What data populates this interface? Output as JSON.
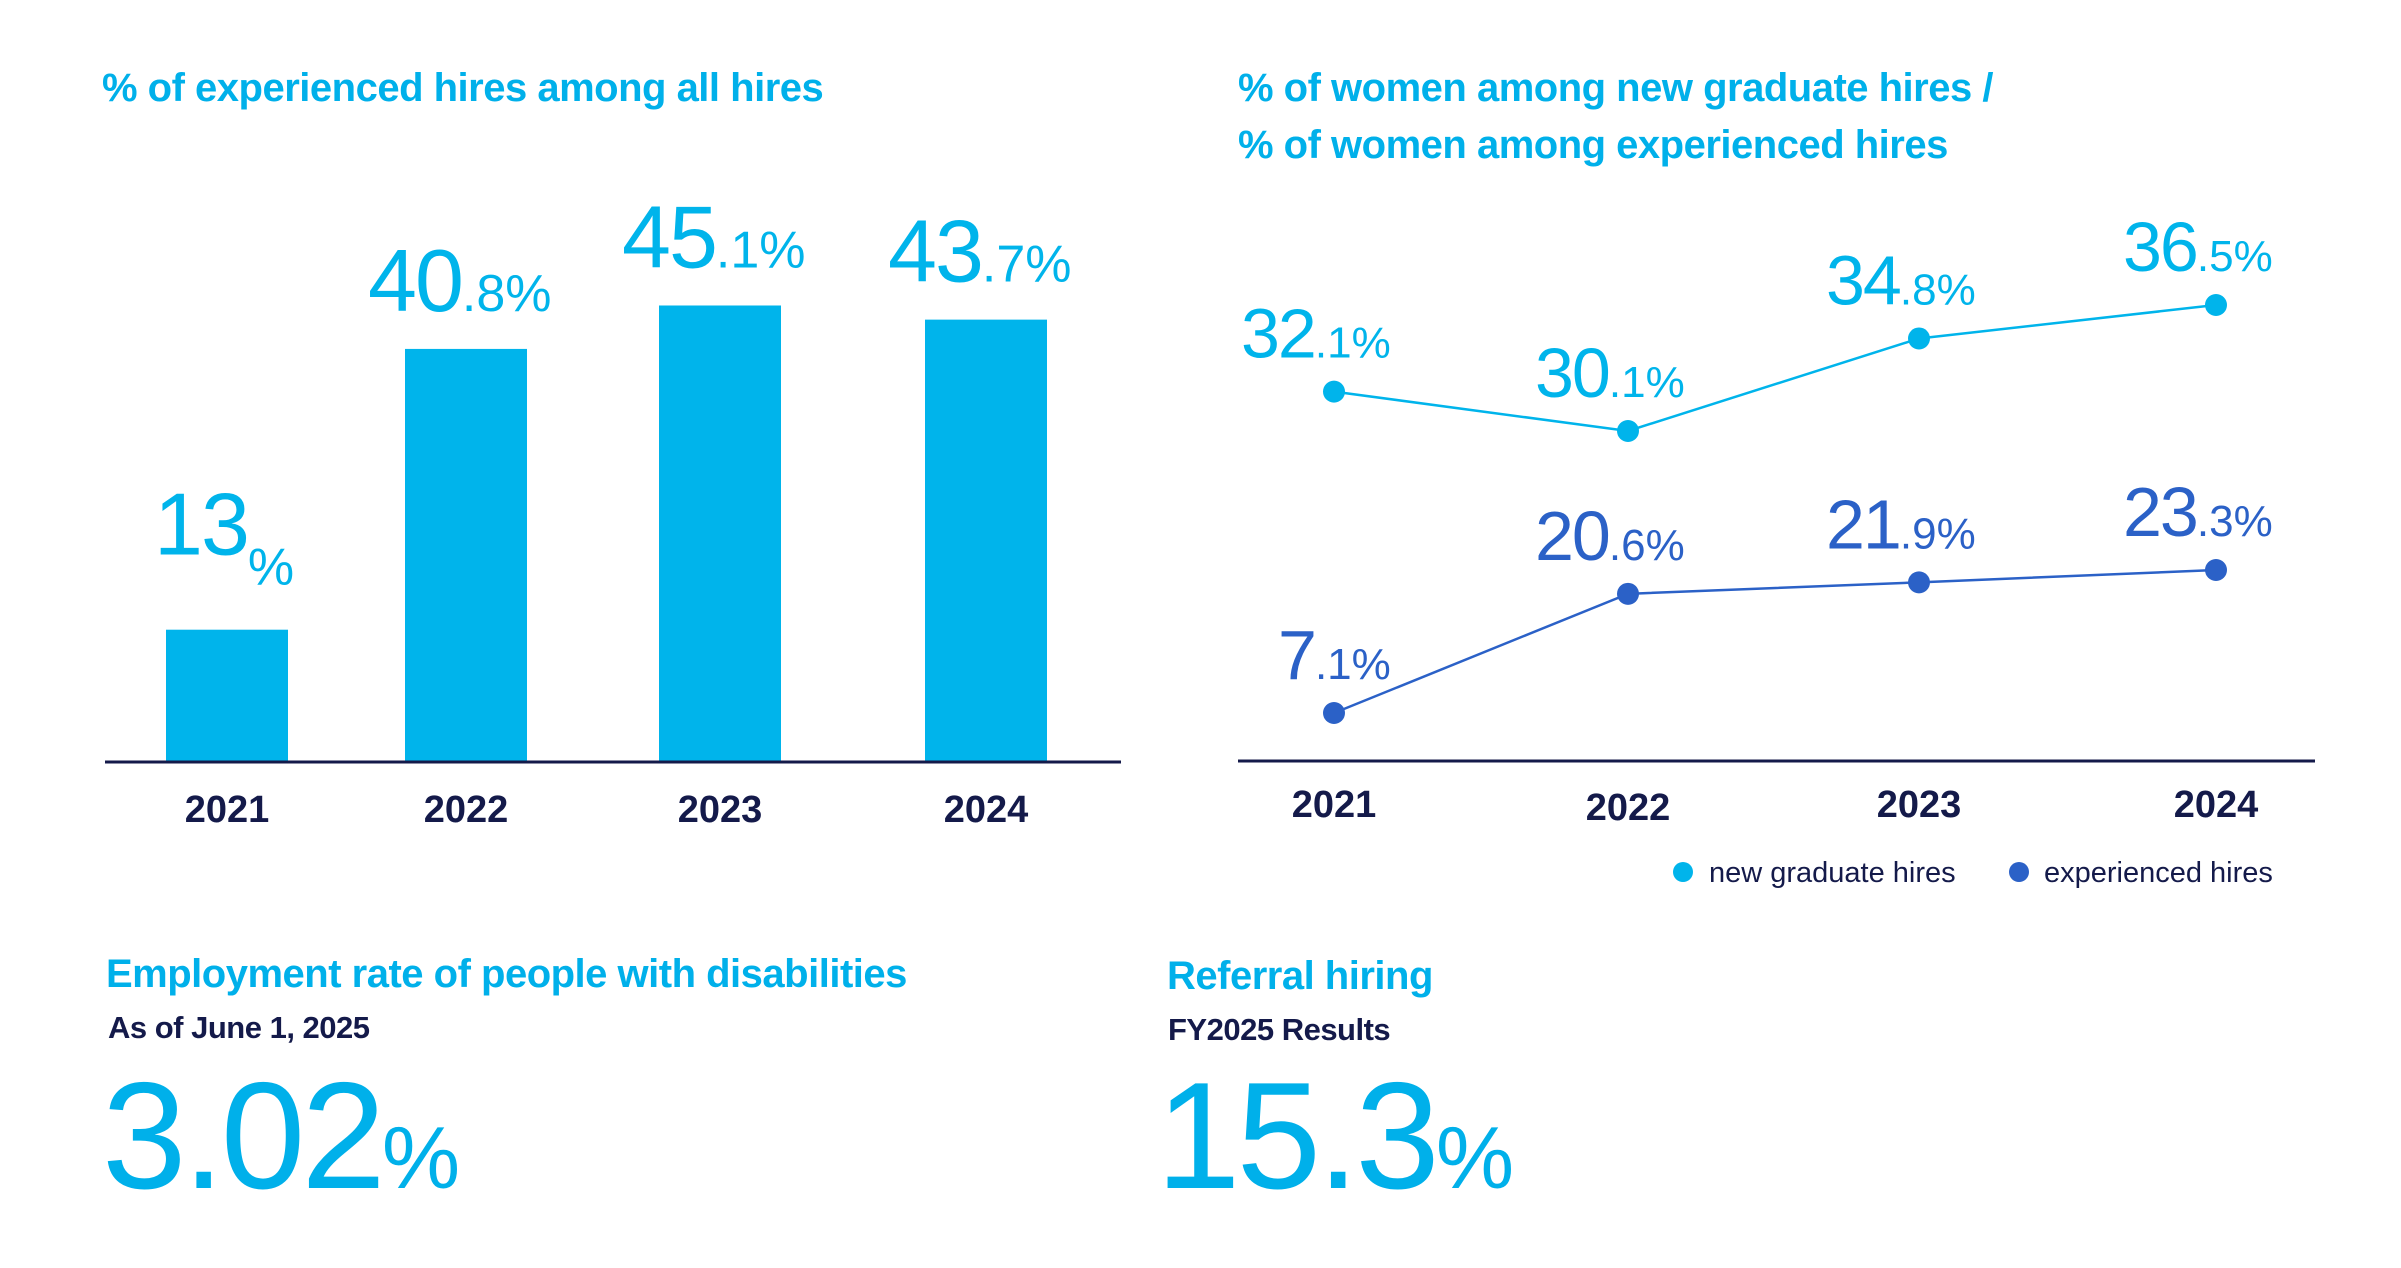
{
  "colors": {
    "cyan": "#00b4eb",
    "blue": "#2b61c7",
    "navy": "#141a4a"
  },
  "chart_data": [
    {
      "type": "bar",
      "title": "% of experienced hires among all hires",
      "categories": [
        "2021",
        "2022",
        "2023",
        "2024"
      ],
      "values": [
        13,
        40.8,
        45.1,
        43.7
      ],
      "labels": [
        {
          "major": "13",
          "minor": "%"
        },
        {
          "major": "40",
          "minor": ".8%"
        },
        {
          "major": "45",
          "minor": ".1%"
        },
        {
          "major": "43",
          "minor": ".7%"
        }
      ],
      "ylim": [
        0,
        50
      ],
      "grid": false
    },
    {
      "type": "line",
      "title_lines": [
        "% of women among new graduate hires /",
        "% of women among experienced hires"
      ],
      "categories": [
        "2021",
        "2022",
        "2023",
        "2024"
      ],
      "series": [
        {
          "name": "new graduate hires",
          "color": "#00b4eb",
          "values": [
            32.1,
            30.1,
            34.8,
            36.5
          ],
          "labels": [
            {
              "major": "32",
              "minor": ".1%"
            },
            {
              "major": "30",
              "minor": ".1%"
            },
            {
              "major": "34",
              "minor": ".8%"
            },
            {
              "major": "36",
              "minor": ".5%"
            }
          ]
        },
        {
          "name": "experienced hires",
          "color": "#2b61c7",
          "values": [
            7.1,
            20.6,
            21.9,
            23.3
          ],
          "labels": [
            {
              "major": "7",
              "minor": ".1%"
            },
            {
              "major": "20",
              "minor": ".6%"
            },
            {
              "major": "21",
              "minor": ".9%"
            },
            {
              "major": "23",
              "minor": ".3%"
            }
          ]
        }
      ],
      "legend": "bottom-right",
      "grid": false
    }
  ],
  "disability": {
    "title": "Employment rate of people with disabilities",
    "subtitle": "As of June 1, 2025",
    "value": "3.02",
    "unit": "%"
  },
  "referral": {
    "title": "Referral hiring",
    "subtitle": "FY2025 Results",
    "value": "15.3",
    "unit": "%"
  }
}
